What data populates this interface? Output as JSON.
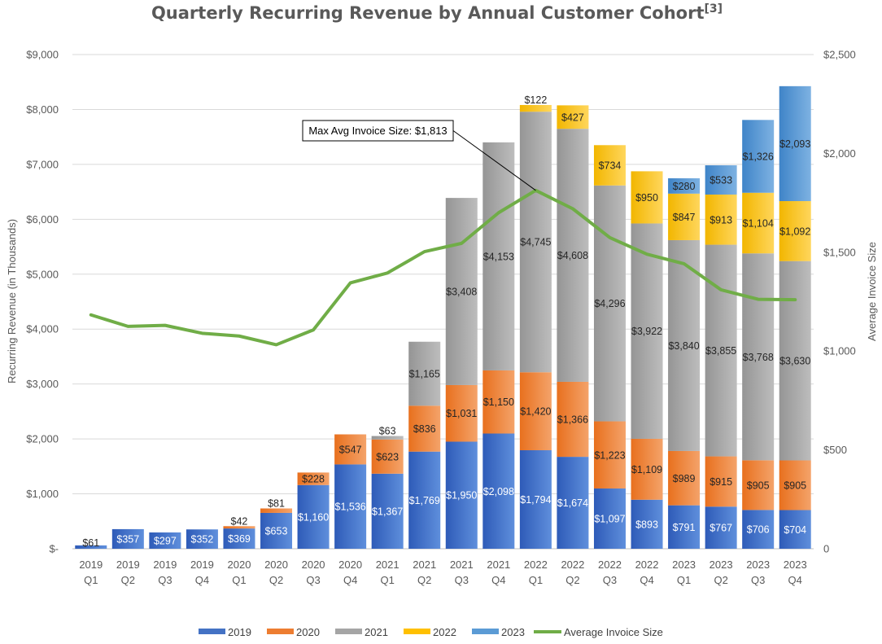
{
  "chart_data": {
    "type": "bar",
    "stacked": true,
    "title": "Quarterly Recurring Revenue by Annual Customer Cohort",
    "title_sup": "[3]",
    "ylabel": "Recurring Revenue (in Thousands)",
    "y2label": "Average Invoice Size",
    "ylim": [
      0,
      9000
    ],
    "y2lim": [
      0,
      2500
    ],
    "yticks": [
      "$-",
      "$1,000",
      "$2,000",
      "$3,000",
      "$4,000",
      "$5,000",
      "$6,000",
      "$7,000",
      "$8,000",
      "$9,000"
    ],
    "y2ticks": [
      "0",
      "$500",
      "$1,000",
      "$1,500",
      "$2,000",
      "$2,500"
    ],
    "categories": [
      [
        "2019",
        "Q1"
      ],
      [
        "2019",
        "Q2"
      ],
      [
        "2019",
        "Q3"
      ],
      [
        "2019",
        "Q4"
      ],
      [
        "2020",
        "Q1"
      ],
      [
        "2020",
        "Q2"
      ],
      [
        "2020",
        "Q3"
      ],
      [
        "2020",
        "Q4"
      ],
      [
        "2021",
        "Q1"
      ],
      [
        "2021",
        "Q2"
      ],
      [
        "2021",
        "Q3"
      ],
      [
        "2021",
        "Q4"
      ],
      [
        "2022",
        "Q1"
      ],
      [
        "2022",
        "Q2"
      ],
      [
        "2022",
        "Q3"
      ],
      [
        "2022",
        "Q4"
      ],
      [
        "2023",
        "Q1"
      ],
      [
        "2023",
        "Q2"
      ],
      [
        "2023",
        "Q3"
      ],
      [
        "2023",
        "Q4"
      ]
    ],
    "series": [
      {
        "name": "2019",
        "color": "#4472C4",
        "gradient": [
          "#2E5BB8",
          "#5F8FDC"
        ],
        "values": [
          61,
          357,
          297,
          352,
          369,
          653,
          1160,
          1536,
          1367,
          1769,
          1950,
          2098,
          1794,
          1674,
          1097,
          893,
          791,
          767,
          706,
          704
        ],
        "labels": [
          "$61",
          "$357",
          "$297",
          "$352",
          "$369",
          "$653",
          "$1,160",
          "$1,536",
          "$1,367",
          "$1,769",
          "$1,950",
          "$2,098",
          "$1,794",
          "$1,674",
          "$1,097",
          "$893",
          "$791",
          "$767",
          "$706",
          "$704"
        ]
      },
      {
        "name": "2020",
        "color": "#ED7D31",
        "gradient": [
          "#E8701E",
          "#F4A36A"
        ],
        "values": [
          0,
          0,
          0,
          0,
          42,
          81,
          228,
          547,
          623,
          836,
          1031,
          1150,
          1420,
          1366,
          1223,
          1109,
          989,
          915,
          905,
          905
        ],
        "labels": [
          "",
          "",
          "",
          "",
          "$42",
          "$81",
          "$228",
          "$547",
          "$623",
          "$836",
          "$1,031",
          "$1,150",
          "$1,420",
          "$1,366",
          "$1,223",
          "$1,109",
          "$989",
          "$915",
          "$905",
          "$905"
        ]
      },
      {
        "name": "2021",
        "color": "#A5A5A5",
        "gradient": [
          "#959595",
          "#BDBDBD"
        ],
        "values": [
          0,
          0,
          0,
          0,
          0,
          0,
          0,
          0,
          63,
          1165,
          3408,
          4153,
          4745,
          4608,
          4296,
          3922,
          3840,
          3855,
          3768,
          3630
        ],
        "labels": [
          "",
          "",
          "",
          "",
          "",
          "",
          "",
          "",
          "$63",
          "$1,165",
          "$3,408",
          "$4,153",
          "$4,745",
          "$4,608",
          "$4,296",
          "$3,922",
          "$3,840",
          "$3,855",
          "$3,768",
          "$3,630"
        ]
      },
      {
        "name": "2022",
        "color": "#FFC000",
        "gradient": [
          "#F2B600",
          "#FFD65C"
        ],
        "values": [
          0,
          0,
          0,
          0,
          0,
          0,
          0,
          0,
          0,
          0,
          0,
          0,
          122,
          427,
          734,
          950,
          847,
          913,
          1104,
          1092
        ],
        "labels": [
          "",
          "",
          "",
          "",
          "",
          "",
          "",
          "",
          "",
          "",
          "",
          "",
          "$122",
          "$427",
          "$734",
          "$950",
          "$847",
          "$913",
          "$1,104",
          "$1,092"
        ]
      },
      {
        "name": "2023",
        "color": "#5B9BD5",
        "gradient": [
          "#3F84C8",
          "#7EB2E2"
        ],
        "values": [
          0,
          0,
          0,
          0,
          0,
          0,
          0,
          0,
          0,
          0,
          0,
          0,
          0,
          0,
          0,
          0,
          280,
          533,
          1326,
          2093
        ],
        "labels": [
          "",
          "",
          "",
          "",
          "",
          "",
          "",
          "",
          "",
          "",
          "",
          "",
          "",
          "",
          "",
          "",
          "$280",
          "$533",
          "$1,326",
          "$2,093"
        ]
      }
    ],
    "line": {
      "name": "Average Invoice Size",
      "color": "#70AD47",
      "axis": "secondary",
      "values": [
        1183,
        1125,
        1130,
        1090,
        1076,
        1032,
        1107,
        1345,
        1395,
        1503,
        1545,
        1700,
        1813,
        1720,
        1574,
        1490,
        1442,
        1310,
        1262,
        1260
      ]
    },
    "annotation": {
      "text": "Max Avg Invoice Size: $1,813",
      "point_index": 12
    },
    "legend": {
      "position": "bottom",
      "entries": [
        "2019",
        "2020",
        "2021",
        "2022",
        "2023",
        "Average Invoice Size"
      ]
    },
    "grid": true
  }
}
